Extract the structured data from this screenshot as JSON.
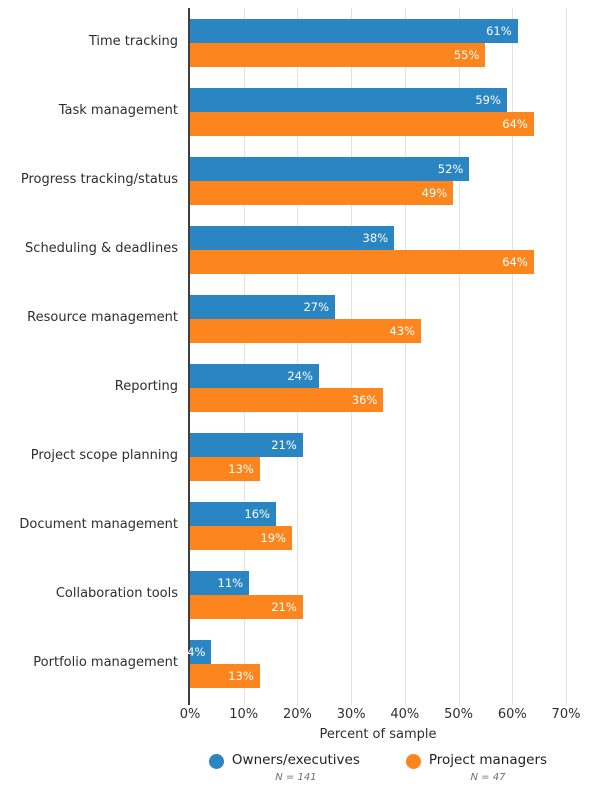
{
  "chart_data": {
    "type": "bar",
    "orientation": "horizontal",
    "title": "",
    "xlabel": "Percent of sample",
    "ylabel": "",
    "xlim": [
      0,
      70
    ],
    "x_ticks": [
      "0%",
      "10%",
      "20%",
      "30%",
      "40%",
      "50%",
      "60%",
      "70%"
    ],
    "grid": true,
    "gridline_color": "#e2e2e2",
    "axis_line_color": "#3e3e3e",
    "value_suffix": "%",
    "legend_position": "bottom",
    "categories": [
      "Time tracking",
      "Task management",
      "Progress tracking/status",
      "Scheduling & deadlines",
      "Resource management",
      "Reporting",
      "Project scope planning",
      "Document management",
      "Collaboration tools",
      "Portfolio management"
    ],
    "series": [
      {
        "key": "owners-executives",
        "name": "Owners/executives",
        "n_label": "N = 141",
        "color": "#2a86c3",
        "values": [
          61,
          59,
          52,
          38,
          27,
          24,
          21,
          16,
          11,
          4
        ]
      },
      {
        "key": "project-managers",
        "name": "Project managers",
        "n_label": "N = 47",
        "color": "#fc861d",
        "values": [
          55,
          64,
          49,
          64,
          43,
          36,
          13,
          19,
          21,
          13
        ]
      }
    ]
  }
}
